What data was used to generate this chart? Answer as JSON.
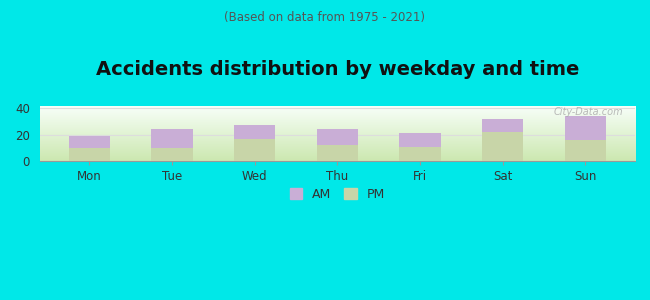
{
  "title": "Accidents distribution by weekday and time",
  "subtitle": "(Based on data from 1975 - 2021)",
  "categories": [
    "Mon",
    "Tue",
    "Wed",
    "Thu",
    "Fri",
    "Sat",
    "Sun"
  ],
  "am_values": [
    9,
    14,
    10,
    12,
    10,
    10,
    18
  ],
  "pm_values": [
    10,
    10,
    17,
    12,
    11,
    22,
    16
  ],
  "am_color": "#c9aed6",
  "pm_color": "#c8d5a8",
  "background_color": "#00e8e8",
  "ylim": [
    0,
    42
  ],
  "yticks": [
    0,
    20,
    40
  ],
  "bar_width": 0.5,
  "watermark": "City-Data.com",
  "title_fontsize": 14,
  "subtitle_fontsize": 8.5,
  "tick_fontsize": 8.5,
  "legend_fontsize": 9
}
